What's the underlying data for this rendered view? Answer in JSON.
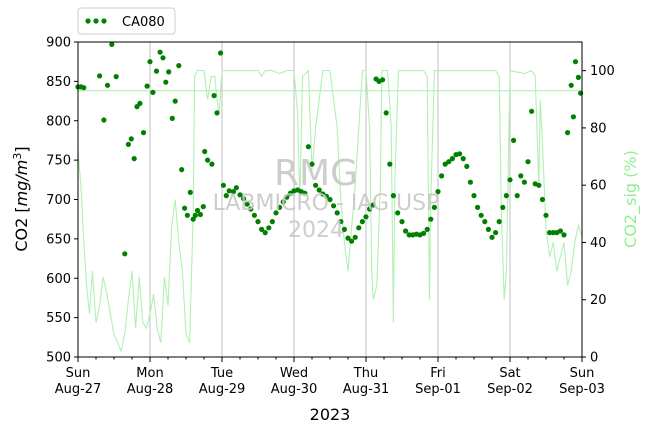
{
  "chart_data": {
    "type": "scatter",
    "xlabel": "2023",
    "ylabel": "CO2 [mg/m³]",
    "ylabel_parts": {
      "prefix": "CO2 [",
      "var": "mg/m",
      "exp": "3",
      "suffix": "]"
    },
    "ylim": [
      500,
      900
    ],
    "yticks": [
      500,
      550,
      600,
      650,
      700,
      750,
      800,
      850,
      900
    ],
    "y2label": "CO2_sig (%)",
    "y2lim": [
      0,
      110
    ],
    "y2ticks": [
      0,
      20,
      40,
      60,
      80,
      100
    ],
    "xlim": [
      0,
      7
    ],
    "xticks": [
      {
        "day": 0,
        "line1": "Sun",
        "line2": "Aug-27"
      },
      {
        "day": 1,
        "line1": "Mon",
        "line2": "Aug-28"
      },
      {
        "day": 2,
        "line1": "Tue",
        "line2": "Aug-29"
      },
      {
        "day": 3,
        "line1": "Wed",
        "line2": "Aug-30"
      },
      {
        "day": 4,
        "line1": "Thu",
        "line2": "Aug-31"
      },
      {
        "day": 5,
        "line1": "Fri",
        "line2": "Sep-01"
      },
      {
        "day": 6,
        "line1": "Sat",
        "line2": "Sep-02"
      },
      {
        "day": 7,
        "line1": "Sun",
        "line2": "Sep-03"
      }
    ],
    "legend": {
      "location": "top-left, above plot"
    },
    "grid": "vertical lines at each day",
    "watermark": [
      "RMG",
      "LABMICRO - IAG USP",
      "2024"
    ],
    "series": [
      {
        "name": "CA080",
        "axis": "left",
        "color": "#008000",
        "marker": "dots",
        "points": [
          [
            0.0,
            843
          ],
          [
            0.04,
            843
          ],
          [
            0.08,
            842
          ],
          [
            0.3,
            857
          ],
          [
            0.36,
            801
          ],
          [
            0.41,
            845
          ],
          [
            0.47,
            897
          ],
          [
            0.53,
            856
          ],
          [
            0.65,
            631
          ],
          [
            0.7,
            770
          ],
          [
            0.74,
            777
          ],
          [
            0.78,
            752
          ],
          [
            0.82,
            818
          ],
          [
            0.86,
            822
          ],
          [
            0.91,
            785
          ],
          [
            0.96,
            844
          ],
          [
            1.0,
            875
          ],
          [
            1.04,
            836
          ],
          [
            1.09,
            863
          ],
          [
            1.14,
            887
          ],
          [
            1.18,
            880
          ],
          [
            1.22,
            849
          ],
          [
            1.26,
            862
          ],
          [
            1.31,
            803
          ],
          [
            1.35,
            825
          ],
          [
            1.4,
            870
          ],
          [
            1.44,
            738
          ],
          [
            1.48,
            689
          ],
          [
            1.52,
            680
          ],
          [
            1.56,
            709
          ],
          [
            1.6,
            675
          ],
          [
            1.63,
            680
          ],
          [
            1.66,
            686
          ],
          [
            1.7,
            681
          ],
          [
            1.74,
            691
          ],
          [
            1.76,
            761
          ],
          [
            1.8,
            750
          ],
          [
            1.86,
            745
          ],
          [
            1.89,
            832
          ],
          [
            1.93,
            810
          ],
          [
            1.98,
            886
          ],
          [
            2.02,
            718
          ],
          [
            2.06,
            705
          ],
          [
            2.1,
            711
          ],
          [
            2.16,
            710
          ],
          [
            2.2,
            715
          ],
          [
            2.25,
            706
          ],
          [
            2.3,
            701
          ],
          [
            2.35,
            694
          ],
          [
            2.4,
            688
          ],
          [
            2.45,
            680
          ],
          [
            2.5,
            672
          ],
          [
            2.55,
            662
          ],
          [
            2.6,
            658
          ],
          [
            2.65,
            664
          ],
          [
            2.7,
            672
          ],
          [
            2.75,
            683
          ],
          [
            2.8,
            690
          ],
          [
            2.85,
            697
          ],
          [
            2.9,
            703
          ],
          [
            2.95,
            708
          ],
          [
            3.0,
            711
          ],
          [
            3.05,
            712
          ],
          [
            3.1,
            710
          ],
          [
            3.15,
            708
          ],
          [
            3.2,
            767
          ],
          [
            3.25,
            745
          ],
          [
            3.3,
            718
          ],
          [
            3.35,
            712
          ],
          [
            3.4,
            707
          ],
          [
            3.45,
            704
          ],
          [
            3.5,
            700
          ],
          [
            3.55,
            692
          ],
          [
            3.6,
            683
          ],
          [
            3.65,
            672
          ],
          [
            3.7,
            662
          ],
          [
            3.75,
            651
          ],
          [
            3.8,
            647
          ],
          [
            3.85,
            652
          ],
          [
            3.9,
            664
          ],
          [
            3.95,
            672
          ],
          [
            4.0,
            678
          ],
          [
            4.05,
            688
          ],
          [
            4.1,
            693
          ],
          [
            4.14,
            853
          ],
          [
            4.18,
            850
          ],
          [
            4.23,
            852
          ],
          [
            4.28,
            810
          ],
          [
            4.33,
            745
          ],
          [
            4.38,
            705
          ],
          [
            4.44,
            683
          ],
          [
            4.5,
            672
          ],
          [
            4.55,
            660
          ],
          [
            4.6,
            655
          ],
          [
            4.65,
            655
          ],
          [
            4.7,
            656
          ],
          [
            4.75,
            655
          ],
          [
            4.8,
            657
          ],
          [
            4.85,
            662
          ],
          [
            4.9,
            675
          ],
          [
            4.95,
            690
          ],
          [
            5.0,
            710
          ],
          [
            5.05,
            730
          ],
          [
            5.1,
            745
          ],
          [
            5.15,
            748
          ],
          [
            5.2,
            752
          ],
          [
            5.25,
            757
          ],
          [
            5.3,
            758
          ],
          [
            5.35,
            752
          ],
          [
            5.4,
            742
          ],
          [
            5.45,
            722
          ],
          [
            5.5,
            705
          ],
          [
            5.55,
            690
          ],
          [
            5.6,
            680
          ],
          [
            5.65,
            672
          ],
          [
            5.7,
            662
          ],
          [
            5.75,
            652
          ],
          [
            5.8,
            658
          ],
          [
            5.85,
            672
          ],
          [
            5.9,
            690
          ],
          [
            5.95,
            705
          ],
          [
            6.0,
            725
          ],
          [
            6.05,
            775
          ],
          [
            6.1,
            705
          ],
          [
            6.15,
            730
          ],
          [
            6.2,
            722
          ],
          [
            6.25,
            748
          ],
          [
            6.3,
            812
          ],
          [
            6.35,
            720
          ],
          [
            6.4,
            718
          ],
          [
            6.45,
            700
          ],
          [
            6.5,
            680
          ],
          [
            6.55,
            658
          ],
          [
            6.6,
            658
          ],
          [
            6.65,
            658
          ],
          [
            6.7,
            660
          ],
          [
            6.75,
            655
          ],
          [
            6.8,
            785
          ],
          [
            6.85,
            845
          ],
          [
            6.88,
            805
          ],
          [
            6.91,
            875
          ],
          [
            6.95,
            855
          ],
          [
            6.98,
            835
          ]
        ]
      },
      {
        "name": "CO2_sig",
        "axis": "right",
        "color": "#b2f0b2",
        "marker": "line",
        "points": [
          [
            0.0,
            72
          ],
          [
            0.04,
            60
          ],
          [
            0.08,
            40
          ],
          [
            0.12,
            25
          ],
          [
            0.16,
            15
          ],
          [
            0.2,
            30
          ],
          [
            0.25,
            12
          ],
          [
            0.3,
            18
          ],
          [
            0.35,
            28
          ],
          [
            0.4,
            22
          ],
          [
            0.45,
            15
          ],
          [
            0.5,
            8
          ],
          [
            0.55,
            5
          ],
          [
            0.6,
            2
          ],
          [
            0.65,
            8
          ],
          [
            0.7,
            20
          ],
          [
            0.75,
            30
          ],
          [
            0.8,
            10
          ],
          [
            0.85,
            28
          ],
          [
            0.9,
            12
          ],
          [
            0.95,
            10
          ],
          [
            1.0,
            15
          ],
          [
            1.05,
            22
          ],
          [
            1.1,
            10
          ],
          [
            1.15,
            5
          ],
          [
            1.2,
            28
          ],
          [
            1.25,
            18
          ],
          [
            1.3,
            45
          ],
          [
            1.35,
            55
          ],
          [
            1.4,
            40
          ],
          [
            1.45,
            30
          ],
          [
            1.5,
            8
          ],
          [
            1.55,
            5
          ],
          [
            1.6,
            50
          ],
          [
            1.62,
            98
          ],
          [
            1.66,
            100
          ],
          [
            1.7,
            100
          ],
          [
            1.75,
            100
          ],
          [
            1.8,
            90
          ],
          [
            1.85,
            98
          ],
          [
            1.9,
            98
          ],
          [
            1.93,
            90
          ],
          [
            1.96,
            85
          ],
          [
            2.0,
            100
          ],
          [
            2.5,
            100
          ],
          [
            2.55,
            98
          ],
          [
            2.6,
            100
          ],
          [
            2.7,
            100
          ],
          [
            2.8,
            99
          ],
          [
            2.9,
            100
          ],
          [
            3.0,
            100
          ],
          [
            3.05,
            85
          ],
          [
            3.08,
            55
          ],
          [
            3.12,
            98
          ],
          [
            3.2,
            100
          ],
          [
            3.25,
            65
          ],
          [
            3.3,
            80
          ],
          [
            3.4,
            100
          ],
          [
            3.5,
            100
          ],
          [
            3.55,
            90
          ],
          [
            3.6,
            80
          ],
          [
            3.65,
            55
          ],
          [
            3.7,
            40
          ],
          [
            3.75,
            30
          ],
          [
            3.8,
            45
          ],
          [
            3.85,
            60
          ],
          [
            3.9,
            80
          ],
          [
            3.95,
            100
          ],
          [
            4.0,
            100
          ],
          [
            4.05,
            80
          ],
          [
            4.08,
            30
          ],
          [
            4.1,
            20
          ],
          [
            4.15,
            25
          ],
          [
            4.2,
            60
          ],
          [
            4.22,
            100
          ],
          [
            4.3,
            100
          ],
          [
            4.35,
            80
          ],
          [
            4.38,
            12
          ],
          [
            4.4,
            60
          ],
          [
            4.45,
            100
          ],
          [
            4.6,
            100
          ],
          [
            4.8,
            100
          ],
          [
            4.85,
            98
          ],
          [
            4.88,
            20
          ],
          [
            4.9,
            55
          ],
          [
            4.95,
            100
          ],
          [
            5.1,
            100
          ],
          [
            5.3,
            100
          ],
          [
            5.5,
            100
          ],
          [
            5.7,
            100
          ],
          [
            5.8,
            100
          ],
          [
            5.85,
            98
          ],
          [
            5.88,
            50
          ],
          [
            5.92,
            20
          ],
          [
            5.95,
            30
          ],
          [
            6.0,
            100
          ],
          [
            6.2,
            99
          ],
          [
            6.3,
            100
          ],
          [
            6.35,
            98
          ],
          [
            6.4,
            60
          ],
          [
            6.42,
            90
          ],
          [
            6.45,
            75
          ],
          [
            6.5,
            45
          ],
          [
            6.55,
            35
          ],
          [
            6.6,
            40
          ],
          [
            6.65,
            30
          ],
          [
            6.7,
            35
          ],
          [
            6.75,
            40
          ],
          [
            6.8,
            25
          ],
          [
            6.85,
            30
          ],
          [
            6.9,
            40
          ],
          [
            6.95,
            46
          ],
          [
            7.0,
            42
          ]
        ]
      }
    ],
    "reference_lines": [
      {
        "axis": "right",
        "value": 93,
        "color": "#b2f0b2",
        "style": "horizontal"
      }
    ]
  }
}
